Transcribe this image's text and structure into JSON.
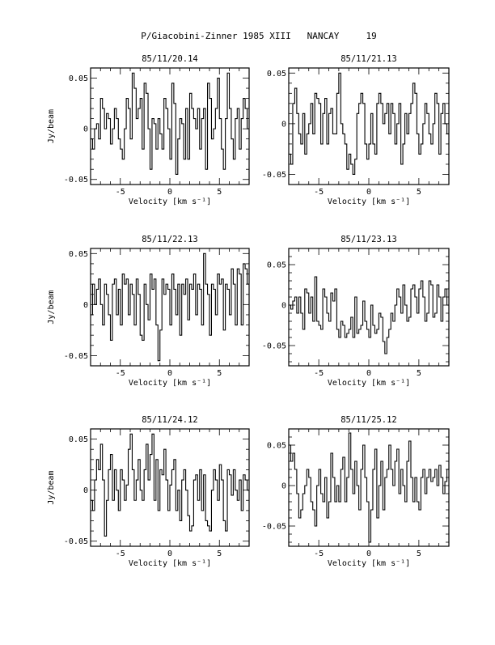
{
  "figure_title": "P/Giacobini-Zinner 1985 XIII   NANCAY     19",
  "chart_data": [
    {
      "type": "line",
      "title": "85/11/20.14",
      "xlabel": "Velocity [km s⁻¹]",
      "ylabel": "Jy/beam",
      "xlim": [
        -8,
        8
      ],
      "ylim": [
        -0.055,
        0.06
      ],
      "xticks": [
        -5,
        0,
        5
      ],
      "xtick_labels": [
        "-5",
        "0",
        "5"
      ],
      "yticks": [
        -0.05,
        0,
        0.05
      ],
      "ytick_labels": [
        "-0.05",
        "0",
        "0.05"
      ],
      "grid": false,
      "x": [
        -8,
        -7.8,
        -7.6,
        -7.4,
        -7.2,
        -7,
        -6.8,
        -6.6,
        -6.4,
        -6.2,
        -6,
        -5.8,
        -5.6,
        -5.4,
        -5.2,
        -5,
        -4.8,
        -4.6,
        -4.4,
        -4.2,
        -4,
        -3.8,
        -3.6,
        -3.4,
        -3.2,
        -3,
        -2.8,
        -2.6,
        -2.4,
        -2.2,
        -2,
        -1.8,
        -1.6,
        -1.4,
        -1.2,
        -1,
        -0.8,
        -0.6,
        -0.4,
        -0.2,
        0,
        0.2,
        0.4,
        0.6,
        0.8,
        1,
        1.2,
        1.4,
        1.6,
        1.8,
        2,
        2.2,
        2.4,
        2.6,
        2.8,
        3,
        3.2,
        3.4,
        3.6,
        3.8,
        4,
        4.2,
        4.4,
        4.6,
        4.8,
        5,
        5.2,
        5.4,
        5.6,
        5.8,
        6,
        6.2,
        6.4,
        6.6,
        6.8,
        7,
        7.2,
        7.4,
        7.6,
        7.8
      ],
      "values": [
        -0.01,
        -0.02,
        0,
        0.005,
        -0.01,
        0.03,
        0.02,
        0,
        0.015,
        0.01,
        -0.015,
        0,
        0.02,
        0.01,
        -0.01,
        -0.02,
        -0.03,
        0,
        0.03,
        0.02,
        -0.01,
        0.055,
        0.04,
        0.01,
        0.02,
        0.03,
        -0.02,
        0.045,
        0.035,
        0,
        -0.04,
        0.01,
        0.005,
        -0.02,
        0.01,
        -0.005,
        -0.02,
        0.03,
        0.02,
        0,
        -0.03,
        0.045,
        0.025,
        -0.045,
        -0.01,
        0.01,
        0.005,
        -0.03,
        0.02,
        -0.03,
        0.035,
        0.02,
        0.01,
        0,
        0.02,
        -0.02,
        0.01,
        0.02,
        -0.04,
        0.045,
        0.03,
        -0.01,
        0,
        0.02,
        0.05,
        0.01,
        -0.02,
        -0.04,
        0.01,
        0.055,
        0.02,
        -0.01,
        -0.03,
        0.01,
        0.02,
        -0.02,
        0.01,
        0.03,
        0.02,
        0
      ]
    },
    {
      "type": "line",
      "title": "85/11/21.13",
      "xlabel": "Velocity [km s⁻¹]",
      "ylabel": "",
      "xlim": [
        -8,
        8
      ],
      "ylim": [
        -0.06,
        0.055
      ],
      "xticks": [
        -5,
        0,
        5
      ],
      "xtick_labels": [
        "-5",
        "0",
        "5"
      ],
      "yticks": [
        -0.05,
        0,
        0.05
      ],
      "ytick_labels": [
        "-0.05",
        "0",
        "0.05"
      ],
      "grid": false,
      "x": [
        -8,
        -7.8,
        -7.6,
        -7.4,
        -7.2,
        -7,
        -6.8,
        -6.6,
        -6.4,
        -6.2,
        -6,
        -5.8,
        -5.6,
        -5.4,
        -5.2,
        -5,
        -4.8,
        -4.6,
        -4.4,
        -4.2,
        -4,
        -3.8,
        -3.6,
        -3.4,
        -3.2,
        -3,
        -2.8,
        -2.6,
        -2.4,
        -2.2,
        -2,
        -1.8,
        -1.6,
        -1.4,
        -1.2,
        -1,
        -0.8,
        -0.6,
        -0.4,
        -0.2,
        0,
        0.2,
        0.4,
        0.6,
        0.8,
        1,
        1.2,
        1.4,
        1.6,
        1.8,
        2,
        2.2,
        2.4,
        2.6,
        2.8,
        3,
        3.2,
        3.4,
        3.6,
        3.8,
        4,
        4.2,
        4.4,
        4.6,
        4.8,
        5,
        5.2,
        5.4,
        5.6,
        5.8,
        6,
        6.2,
        6.4,
        6.6,
        6.8,
        7,
        7.2,
        7.4,
        7.6,
        7.8
      ],
      "values": [
        -0.03,
        -0.04,
        0.02,
        0.035,
        0.01,
        -0.01,
        -0.02,
        0.01,
        -0.03,
        -0.01,
        0,
        0.02,
        -0.01,
        0.03,
        0.025,
        0.02,
        -0.02,
        0.01,
        0.025,
        -0.02,
        0.01,
        0.015,
        -0.01,
        -0.01,
        0.03,
        0.05,
        0,
        -0.01,
        -0.02,
        -0.045,
        -0.03,
        -0.04,
        -0.05,
        -0.035,
        0.01,
        0.02,
        0.03,
        0.02,
        -0.02,
        -0.035,
        -0.02,
        0.01,
        -0.02,
        -0.03,
        0.02,
        0.03,
        0.02,
        0,
        0.01,
        0.02,
        -0.01,
        0.02,
        0.01,
        -0.02,
        0,
        0.02,
        -0.04,
        -0.02,
        0.01,
        -0.01,
        0.01,
        0.02,
        0.04,
        0.03,
        -0.01,
        -0.03,
        -0.02,
        0,
        0.02,
        0.01,
        -0.01,
        -0.02,
        0,
        0.03,
        0.02,
        -0.03,
        0.01,
        0.02,
        0,
        -0.01
      ]
    },
    {
      "type": "line",
      "title": "85/11/22.13",
      "xlabel": "Velocity [km s⁻¹]",
      "ylabel": "Jy/beam",
      "xlim": [
        -8,
        8
      ],
      "ylim": [
        -0.06,
        0.055
      ],
      "xticks": [
        -5,
        0,
        5
      ],
      "xtick_labels": [
        "-5",
        "0",
        "5"
      ],
      "yticks": [
        -0.05,
        0,
        0.05
      ],
      "ytick_labels": [
        "-0.05",
        "0",
        "0.05"
      ],
      "grid": false,
      "x": [
        -8,
        -7.8,
        -7.6,
        -7.4,
        -7.2,
        -7,
        -6.8,
        -6.6,
        -6.4,
        -6.2,
        -6,
        -5.8,
        -5.6,
        -5.4,
        -5.2,
        -5,
        -4.8,
        -4.6,
        -4.4,
        -4.2,
        -4,
        -3.8,
        -3.6,
        -3.4,
        -3.2,
        -3,
        -2.8,
        -2.6,
        -2.4,
        -2.2,
        -2,
        -1.8,
        -1.6,
        -1.4,
        -1.2,
        -1,
        -0.8,
        -0.6,
        -0.4,
        -0.2,
        0,
        0.2,
        0.4,
        0.6,
        0.8,
        1,
        1.2,
        1.4,
        1.6,
        1.8,
        2,
        2.2,
        2.4,
        2.6,
        2.8,
        3,
        3.2,
        3.4,
        3.6,
        3.8,
        4,
        4.2,
        4.4,
        4.6,
        4.8,
        5,
        5.2,
        5.4,
        5.6,
        5.8,
        6,
        6.2,
        6.4,
        6.6,
        6.8,
        7,
        7.2,
        7.4,
        7.6,
        7.8
      ],
      "values": [
        -0.01,
        0.02,
        0,
        0.015,
        0.025,
        0,
        -0.02,
        0.02,
        0.01,
        -0.01,
        -0.035,
        0.02,
        0.025,
        -0.01,
        0.015,
        -0.02,
        0.03,
        0.02,
        0.025,
        -0.01,
        0.02,
        0.01,
        -0.02,
        0.025,
        0.01,
        -0.03,
        -0.035,
        0.02,
        0,
        -0.015,
        0.03,
        0.015,
        0.025,
        -0.02,
        -0.055,
        -0.025,
        0.025,
        0.01,
        0.02,
        0.015,
        -0.02,
        0.03,
        0.015,
        -0.01,
        0.02,
        -0.03,
        0.02,
        0.01,
        0.025,
        -0.015,
        0.02,
        0.015,
        0.03,
        -0.01,
        0.02,
        0.015,
        -0.02,
        0.05,
        0.02,
        0.01,
        -0.03,
        0.02,
        0.015,
        -0.01,
        0.03,
        0.02,
        0.025,
        -0.025,
        0.02,
        0.015,
        -0.01,
        0.035,
        0.02,
        -0.02,
        0.035,
        0.03,
        -0.02,
        0.04,
        0.035,
        0.02
      ]
    },
    {
      "type": "line",
      "title": "85/11/23.13",
      "xlabel": "Velocity [km s⁻¹]",
      "ylabel": "",
      "xlim": [
        -8,
        8
      ],
      "ylim": [
        -0.075,
        0.07
      ],
      "xticks": [
        -5,
        0,
        5
      ],
      "xtick_labels": [
        "-5",
        "0",
        "5"
      ],
      "yticks": [
        -0.05,
        0,
        0.05
      ],
      "ytick_labels": [
        "-0.05",
        "0",
        "0.05"
      ],
      "grid": false,
      "x": [
        -8,
        -7.8,
        -7.6,
        -7.4,
        -7.2,
        -7,
        -6.8,
        -6.6,
        -6.4,
        -6.2,
        -6,
        -5.8,
        -5.6,
        -5.4,
        -5.2,
        -5,
        -4.8,
        -4.6,
        -4.4,
        -4.2,
        -4,
        -3.8,
        -3.6,
        -3.4,
        -3.2,
        -3,
        -2.8,
        -2.6,
        -2.4,
        -2.2,
        -2,
        -1.8,
        -1.6,
        -1.4,
        -1.2,
        -1,
        -0.8,
        -0.6,
        -0.4,
        -0.2,
        0,
        0.2,
        0.4,
        0.6,
        0.8,
        1,
        1.2,
        1.4,
        1.6,
        1.8,
        2,
        2.2,
        2.4,
        2.6,
        2.8,
        3,
        3.2,
        3.4,
        3.6,
        3.8,
        4,
        4.2,
        4.4,
        4.6,
        4.8,
        5,
        5.2,
        5.4,
        5.6,
        5.8,
        6,
        6.2,
        6.4,
        6.6,
        6.8,
        7,
        7.2,
        7.4,
        7.6,
        7.8
      ],
      "values": [
        0,
        -0.005,
        0.005,
        0.01,
        -0.01,
        0.01,
        -0.01,
        -0.03,
        0.02,
        0.015,
        -0.01,
        0.01,
        -0.02,
        0.035,
        -0.02,
        -0.025,
        -0.03,
        0.02,
        0.01,
        -0.01,
        -0.02,
        0.015,
        0.005,
        0.02,
        -0.03,
        -0.04,
        -0.02,
        -0.025,
        -0.04,
        -0.035,
        -0.03,
        -0.015,
        -0.04,
        0.01,
        -0.035,
        -0.03,
        -0.025,
        0.005,
        -0.02,
        -0.03,
        -0.04,
        0,
        -0.025,
        -0.035,
        -0.03,
        -0.01,
        -0.015,
        -0.045,
        -0.06,
        -0.04,
        -0.03,
        -0.01,
        -0.02,
        0,
        0.02,
        0.01,
        -0.01,
        0.025,
        0,
        -0.02,
        -0.015,
        0.02,
        0.025,
        0.01,
        -0.01,
        0.02,
        0.03,
        0.01,
        -0.02,
        -0.01,
        0.03,
        0.025,
        -0.015,
        -0.01,
        0.025,
        0.01,
        -0.02,
        0.01,
        0.02,
        0
      ]
    },
    {
      "type": "line",
      "title": "85/11/24.12",
      "xlabel": "Velocity [km s⁻¹]",
      "ylabel": "Jy/beam",
      "xlim": [
        -8,
        8
      ],
      "ylim": [
        -0.055,
        0.06
      ],
      "xticks": [
        -5,
        0,
        5
      ],
      "xtick_labels": [
        "-5",
        "0",
        "5"
      ],
      "yticks": [
        -0.05,
        0,
        0.05
      ],
      "ytick_labels": [
        "-0.05",
        "0",
        "0.05"
      ],
      "grid": false,
      "x": [
        -8,
        -7.8,
        -7.6,
        -7.4,
        -7.2,
        -7,
        -6.8,
        -6.6,
        -6.4,
        -6.2,
        -6,
        -5.8,
        -5.6,
        -5.4,
        -5.2,
        -5,
        -4.8,
        -4.6,
        -4.4,
        -4.2,
        -4,
        -3.8,
        -3.6,
        -3.4,
        -3.2,
        -3,
        -2.8,
        -2.6,
        -2.4,
        -2.2,
        -2,
        -1.8,
        -1.6,
        -1.4,
        -1.2,
        -1,
        -0.8,
        -0.6,
        -0.4,
        -0.2,
        0,
        0.2,
        0.4,
        0.6,
        0.8,
        1,
        1.2,
        1.4,
        1.6,
        1.8,
        2,
        2.2,
        2.4,
        2.6,
        2.8,
        3,
        3.2,
        3.4,
        3.6,
        3.8,
        4,
        4.2,
        4.4,
        4.6,
        4.8,
        5,
        5.2,
        5.4,
        5.6,
        5.8,
        6,
        6.2,
        6.4,
        6.6,
        6.8,
        7,
        7.2,
        7.4,
        7.6,
        7.8
      ],
      "values": [
        -0.01,
        -0.02,
        0.01,
        0.03,
        0.02,
        0.045,
        0.01,
        -0.045,
        -0.01,
        0.02,
        0.035,
        -0.01,
        0.02,
        0,
        -0.02,
        0.02,
        0.01,
        -0.01,
        0.005,
        0.04,
        0.055,
        0.02,
        -0.01,
        0.01,
        0.03,
        0,
        -0.01,
        0.02,
        0.045,
        0.01,
        0.035,
        0.055,
        -0.01,
        0.03,
        -0.02,
        0.02,
        0.015,
        0.04,
        0.01,
        -0.02,
        0.005,
        0.02,
        0.03,
        -0.02,
        0,
        -0.03,
        0.01,
        0.02,
        0,
        -0.025,
        -0.04,
        -0.035,
        0.01,
        0.015,
        -0.01,
        0.02,
        -0.02,
        0.015,
        -0.03,
        -0.035,
        -0.04,
        0,
        0.02,
        0.01,
        -0.01,
        0.025,
        0.01,
        -0.03,
        -0.04,
        0.02,
        0.015,
        -0.005,
        0.02,
        0,
        -0.01,
        0.01,
        -0.02,
        0.015,
        0.01,
        0
      ]
    },
    {
      "type": "line",
      "title": "85/11/25.12",
      "xlabel": "Velocity [km s⁻¹]",
      "ylabel": "",
      "xlim": [
        -8,
        8
      ],
      "ylim": [
        -0.075,
        0.07
      ],
      "xticks": [
        -5,
        0,
        5
      ],
      "xtick_labels": [
        "-5",
        "0",
        "5"
      ],
      "yticks": [
        -0.05,
        0,
        0.05
      ],
      "ytick_labels": [
        "-0.05",
        "0",
        "0.05"
      ],
      "grid": false,
      "x": [
        -8,
        -7.8,
        -7.6,
        -7.4,
        -7.2,
        -7,
        -6.8,
        -6.6,
        -6.4,
        -6.2,
        -6,
        -5.8,
        -5.6,
        -5.4,
        -5.2,
        -5,
        -4.8,
        -4.6,
        -4.4,
        -4.2,
        -4,
        -3.8,
        -3.6,
        -3.4,
        -3.2,
        -3,
        -2.8,
        -2.6,
        -2.4,
        -2.2,
        -2,
        -1.8,
        -1.6,
        -1.4,
        -1.2,
        -1,
        -0.8,
        -0.6,
        -0.4,
        -0.2,
        0,
        0.2,
        0.4,
        0.6,
        0.8,
        1,
        1.2,
        1.4,
        1.6,
        1.8,
        2,
        2.2,
        2.4,
        2.6,
        2.8,
        3,
        3.2,
        3.4,
        3.6,
        3.8,
        4,
        4.2,
        4.4,
        4.6,
        4.8,
        5,
        5.2,
        5.4,
        5.6,
        5.8,
        6,
        6.2,
        6.4,
        6.6,
        6.8,
        7,
        7.2,
        7.4,
        7.6,
        7.8
      ],
      "values": [
        0.05,
        0.03,
        0.04,
        0.02,
        -0.01,
        -0.04,
        -0.03,
        -0.01,
        0,
        0.02,
        0.01,
        -0.02,
        -0.03,
        -0.05,
        0,
        0.02,
        -0.01,
        -0.02,
        0.01,
        -0.04,
        -0.02,
        0.04,
        0.01,
        -0.02,
        0,
        -0.02,
        0.02,
        0.035,
        -0.02,
        0.01,
        0.065,
        0.02,
        -0.01,
        0.03,
        0,
        -0.03,
        0.02,
        0.05,
        0.01,
        -0.02,
        -0.07,
        -0.03,
        0.02,
        0.045,
        -0.04,
        0,
        0.03,
        -0.03,
        0.01,
        0.02,
        0.05,
        0.02,
        0,
        0.03,
        0.045,
        -0.01,
        0.02,
        0,
        -0.02,
        0.03,
        0.055,
        0.01,
        -0.02,
        0.01,
        -0.02,
        -0.03,
        0.01,
        0.02,
        -0.01,
        0.01,
        0.02,
        0.005,
        0.01,
        0.02,
        0,
        0.025,
        0.01,
        -0.01,
        0.005,
        0.02
      ]
    }
  ]
}
